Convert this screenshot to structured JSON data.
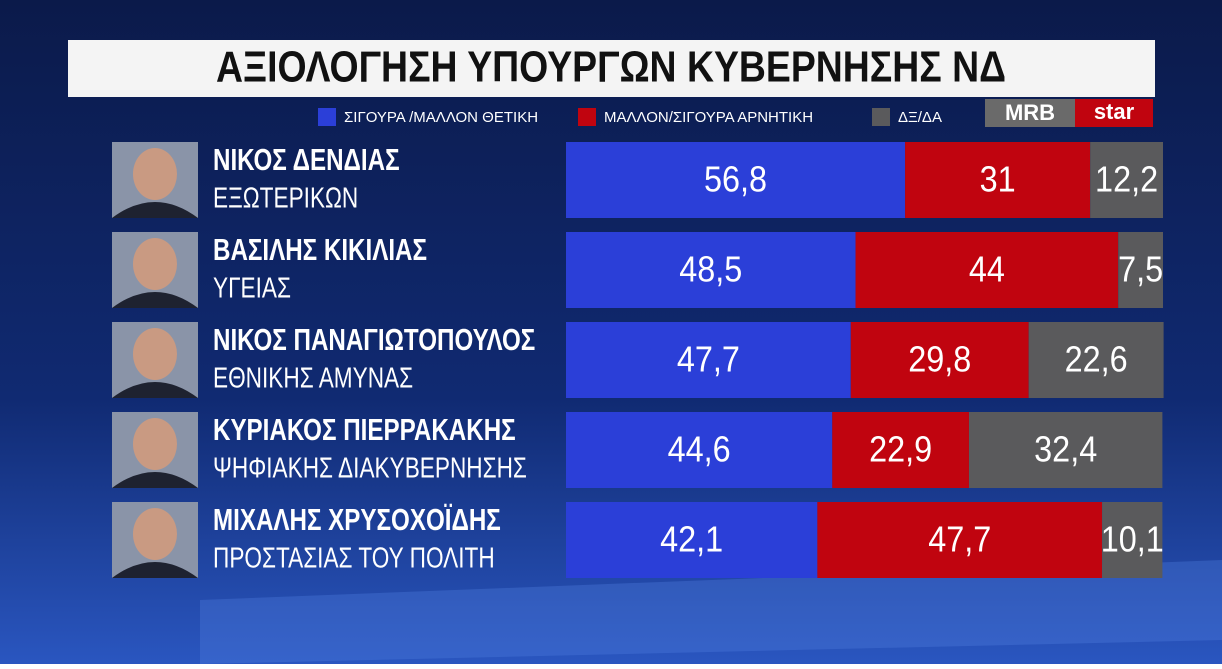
{
  "chart_data": {
    "type": "stacked-bar",
    "title": "ΑΞΙΟΛΟΓΗΣΗ ΥΠΟΥΡΓΩΝ ΚΥΒΕΡΝΗΣΗΣ ΝΔ",
    "source": "MRB",
    "channel": "star",
    "categories": [
      "ΝΙΚΟΣ ΔΕΝΔΙΑΣ",
      "ΒΑΣΙΛΗΣ ΚΙΚΙΛΙΑΣ",
      "ΝΙΚΟΣ ΠΑΝΑΓΙΩΤΟΠΟΥΛΟΣ",
      "ΚΥΡΙΑΚΟΣ ΠΙΕΡΡΑΚΑΚΗΣ",
      "ΜΙΧΑΛΗΣ ΧΡΥΣΟΧΟΪΔΗΣ"
    ],
    "category_subtitles": [
      "ΕΞΩΤΕΡΙΚΩΝ",
      "ΥΓΕΙΑΣ",
      "ΕΘΝΙΚΗΣ ΑΜΥΝΑΣ",
      "ΨΗΦΙΑΚΗΣ ΔΙΑΚΥΒΕΡΝΗΣΗΣ",
      "ΠΡΟΣΤΑΣΙΑΣ ΤΟΥ ΠΟΛΙΤΗ"
    ],
    "xlim": [
      0,
      100
    ],
    "series": [
      {
        "name": "ΣΙΓΟΥΡΑ /ΜΑΛΛΟΝ ΘΕΤΙΚΗ",
        "color": "#2b3fd8",
        "values": [
          56.8,
          48.5,
          47.7,
          44.6,
          42.1
        ],
        "value_labels": [
          "56,8",
          "48,5",
          "47,7",
          "44,6",
          "42,1"
        ]
      },
      {
        "name": "ΜΑΛΛΟΝ/ΣΙΓΟΥΡΑ ΑΡΝΗΤΙΚΗ",
        "color": "#c0040f",
        "values": [
          31,
          44,
          29.8,
          22.9,
          47.7
        ],
        "value_labels": [
          "31",
          "44",
          "29,8",
          "22,9",
          "47,7"
        ]
      },
      {
        "name": "ΔΞ/ΔΑ",
        "color": "#5a5a5c",
        "values": [
          12.2,
          7.5,
          22.6,
          32.4,
          10.1
        ],
        "value_labels": [
          "12,2",
          "7,5",
          "22,6",
          "32,4",
          "10,1"
        ]
      }
    ]
  }
}
